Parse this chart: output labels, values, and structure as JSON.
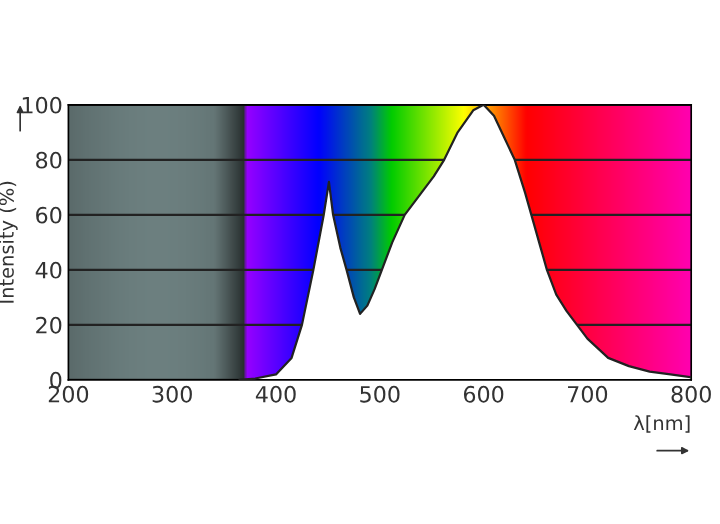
{
  "chart_data": {
    "type": "area",
    "xlabel": "λ[nm]",
    "ylabel": "Intensity (%)",
    "xlim": [
      200,
      800
    ],
    "ylim": [
      0,
      100
    ],
    "xticks": [
      200,
      300,
      400,
      500,
      600,
      700,
      800
    ],
    "yticks": [
      0,
      20,
      40,
      60,
      80,
      100
    ],
    "grid": "y",
    "series": [
      {
        "color": "#ffffff",
        "x": [
          365,
          380,
          400,
          415,
          425,
          436,
          446,
          451,
          455,
          462,
          468,
          475,
          481,
          488,
          495,
          502,
          512,
          524,
          540,
          552,
          562,
          575,
          590,
          600,
          610,
          620,
          630,
          640,
          646,
          655,
          661,
          670,
          680,
          690,
          700,
          720,
          740,
          760,
          780,
          800
        ],
        "values": [
          0,
          0.5,
          2,
          8,
          20,
          40,
          60,
          72,
          60,
          48,
          40,
          30,
          24,
          27,
          33,
          40,
          50,
          60,
          68,
          74,
          80,
          90,
          98,
          100,
          96,
          88,
          80,
          68,
          60,
          48,
          40,
          31,
          25,
          20,
          15,
          8,
          5,
          3,
          2,
          1
        ]
      }
    ]
  }
}
